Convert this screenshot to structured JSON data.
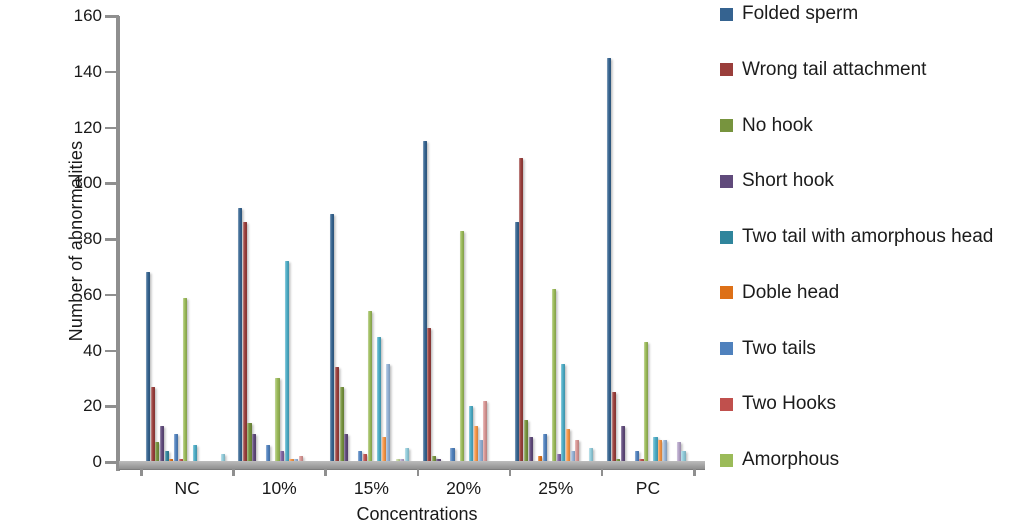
{
  "figure": {
    "background": "#ffffff"
  },
  "y_axis": {
    "title": "Number of abnormalities",
    "ticks": [
      0,
      20,
      40,
      60,
      80,
      100,
      120,
      140,
      160
    ],
    "max": 160
  },
  "x_axis": {
    "title": "Concentrations",
    "categories": [
      "NC",
      "10%",
      "15%",
      "20%",
      "25%",
      "PC"
    ]
  },
  "legend": {
    "position": "right",
    "entries": [
      {
        "label": "Folded sperm",
        "color": "#356390"
      },
      {
        "label": "Wrong tail attachment",
        "color": "#9A3E3B"
      },
      {
        "label": "No hook",
        "color": "#77943E"
      },
      {
        "label": "Short hook",
        "color": "#604A7B"
      },
      {
        "label": "Two tail with amorphous head",
        "color": "#2F859C"
      },
      {
        "label": "Doble head",
        "color": "#DD7017"
      },
      {
        "label": "Two tails",
        "color": "#4F81BD"
      },
      {
        "label": "Two Hooks",
        "color": "#C0504D"
      },
      {
        "label": "Amorphous",
        "color": "#9BBB59"
      }
    ]
  },
  "chart_data": {
    "type": "bar",
    "title": "",
    "xlabel": "Concentrations",
    "ylabel": "Number of abnormalities",
    "ylim": [
      0,
      160
    ],
    "grid": false,
    "legend_position": "right",
    "categories": [
      "NC",
      "10%",
      "15%",
      "20%",
      "25%",
      "PC"
    ],
    "series": [
      {
        "name": "Folded sperm",
        "color": "#356390",
        "values": [
          68,
          91,
          89,
          115,
          86,
          145
        ]
      },
      {
        "name": "Wrong tail attachment",
        "color": "#9A3E3B",
        "values": [
          27,
          86,
          34,
          48,
          109,
          25
        ]
      },
      {
        "name": "No hook",
        "color": "#77943E",
        "values": [
          7,
          14,
          27,
          2,
          15,
          1
        ]
      },
      {
        "name": "Short hook",
        "color": "#604A7B",
        "values": [
          13,
          10,
          10,
          1,
          9,
          13
        ]
      },
      {
        "name": "Two tail with amorphous head",
        "color": "#2F859C",
        "values": [
          4,
          0,
          0,
          0,
          0,
          0
        ]
      },
      {
        "name": "Doble head",
        "color": "#DD7017",
        "values": [
          1,
          0,
          0,
          0,
          2,
          0
        ]
      },
      {
        "name": "Two tails",
        "color": "#4F81BD",
        "values": [
          10,
          6,
          4,
          5,
          10,
          4
        ]
      },
      {
        "name": "Two Hooks",
        "color": "#C0504D",
        "values": [
          1,
          0,
          3,
          0,
          0,
          1
        ]
      },
      {
        "name": "Amorphous",
        "color": "#9BBB59",
        "values": [
          59,
          30,
          54,
          83,
          62,
          43
        ]
      },
      {
        "name": "",
        "color": "#8064A2",
        "values": [
          0,
          4,
          0,
          0,
          3,
          0
        ]
      },
      {
        "name": "",
        "color": "#4BACC6",
        "values": [
          6,
          72,
          45,
          20,
          35,
          9
        ]
      },
      {
        "name": "",
        "color": "#F79646",
        "values": [
          0,
          1,
          9,
          13,
          12,
          8
        ]
      },
      {
        "name": "",
        "color": "#95B3D7",
        "values": [
          0,
          1,
          35,
          8,
          4,
          8
        ]
      },
      {
        "name": "",
        "color": "#D99694",
        "values": [
          0,
          2,
          0,
          22,
          8,
          0
        ]
      },
      {
        "name": "",
        "color": "#C3D69B",
        "values": [
          0,
          0,
          1,
          0,
          0,
          0
        ]
      },
      {
        "name": "",
        "color": "#B3A2C7",
        "values": [
          0,
          0,
          1,
          0,
          0,
          7
        ]
      },
      {
        "name": "",
        "color": "#92CDDC",
        "values": [
          3,
          0,
          5,
          0,
          5,
          4
        ]
      }
    ]
  }
}
